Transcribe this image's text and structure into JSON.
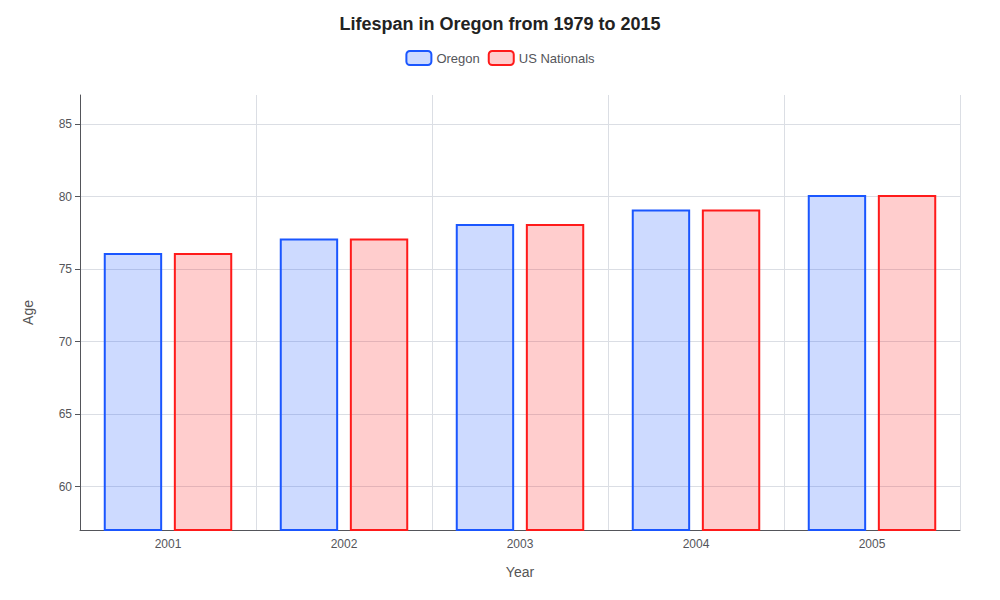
{
  "chart_data": {
    "type": "bar",
    "title": "Lifespan in Oregon from 1979 to 2015",
    "xlabel": "Year",
    "ylabel": "Age",
    "categories": [
      "2001",
      "2002",
      "2003",
      "2004",
      "2005"
    ],
    "series": [
      {
        "name": "Oregon",
        "color": "#1a56ff",
        "values": [
          76.1,
          77.1,
          78.1,
          79.1,
          80.1
        ]
      },
      {
        "name": "US Nationals",
        "color": "#ff1a1a",
        "values": [
          76.1,
          77.1,
          78.1,
          79.1,
          80.1
        ]
      }
    ],
    "ylim": [
      57,
      87
    ],
    "yticks": [
      60,
      65,
      70,
      75,
      80,
      85
    ],
    "grid": true,
    "legend": "top"
  }
}
